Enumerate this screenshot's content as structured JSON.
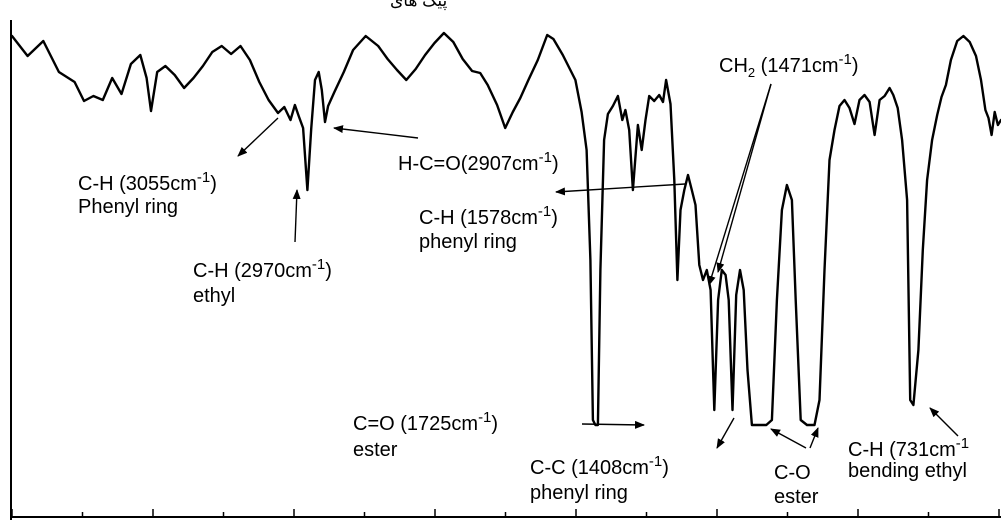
{
  "chart_data": {
    "type": "line",
    "title": "",
    "xlabel": "",
    "ylabel": "",
    "x_direction": "decreasing",
    "grid": false,
    "legend": "none",
    "line_color": "#000000",
    "top_text": "پیک های",
    "series": [
      {
        "points": [
          [
            3600,
            36
          ],
          [
            3575,
            56
          ],
          [
            3550,
            41
          ],
          [
            3525,
            72
          ],
          [
            3500,
            82
          ],
          [
            3485,
            101
          ],
          [
            3470,
            96
          ],
          [
            3455,
            100
          ],
          [
            3440,
            78
          ],
          [
            3425,
            94
          ],
          [
            3410,
            64
          ],
          [
            3395,
            55
          ],
          [
            3385,
            78
          ],
          [
            3378,
            111
          ],
          [
            3368,
            72
          ],
          [
            3355,
            66
          ],
          [
            3340,
            75
          ],
          [
            3325,
            88
          ],
          [
            3310,
            78
          ],
          [
            3295,
            66
          ],
          [
            3280,
            52
          ],
          [
            3265,
            46
          ],
          [
            3250,
            54
          ],
          [
            3235,
            46
          ],
          [
            3220,
            60
          ],
          [
            3205,
            82
          ],
          [
            3190,
            100
          ],
          [
            3175,
            113
          ],
          [
            3165,
            107
          ],
          [
            3155,
            120
          ],
          [
            3148,
            105
          ],
          [
            3142,
            116
          ],
          [
            3135,
            128
          ],
          [
            3128,
            190
          ],
          [
            3122,
            129
          ],
          [
            3116,
            80
          ],
          [
            3110,
            72
          ],
          [
            3105,
            90
          ],
          [
            3100,
            122
          ],
          [
            3095,
            106
          ],
          [
            3085,
            92
          ],
          [
            3070,
            72
          ],
          [
            3055,
            50
          ],
          [
            3035,
            36
          ],
          [
            3015,
            46
          ],
          [
            3000,
            59
          ],
          [
            2985,
            70
          ],
          [
            2970,
            80
          ],
          [
            2955,
            69
          ],
          [
            2940,
            55
          ],
          [
            2925,
            43
          ],
          [
            2910,
            33
          ],
          [
            2895,
            42
          ],
          [
            2880,
            59
          ],
          [
            2865,
            71
          ],
          [
            2852,
            73
          ],
          [
            2840,
            85
          ],
          [
            2825,
            105
          ],
          [
            2812,
            128
          ],
          [
            2800,
            112
          ],
          [
            2788,
            98
          ],
          [
            2775,
            80
          ],
          [
            2760,
            60
          ],
          [
            2745,
            35
          ],
          [
            2735,
            39
          ],
          [
            2720,
            55
          ],
          [
            2700,
            80
          ],
          [
            2690,
            112
          ],
          [
            2682,
            150
          ],
          [
            2676,
            260
          ],
          [
            2672,
            420
          ],
          [
            2668,
            425
          ],
          [
            2664,
            425
          ],
          [
            2660,
            270
          ],
          [
            2654,
            140
          ],
          [
            2648,
            114
          ],
          [
            2640,
            106
          ],
          [
            2632,
            96
          ],
          [
            2625,
            120
          ],
          [
            2620,
            110
          ],
          [
            2614,
            130
          ],
          [
            2608,
            190
          ],
          [
            2600,
            125
          ],
          [
            2594,
            150
          ],
          [
            2588,
            120
          ],
          [
            2582,
            96
          ],
          [
            2574,
            101
          ],
          [
            2566,
            95
          ],
          [
            2560,
            102
          ],
          [
            2555,
            80
          ],
          [
            2548,
            104
          ],
          [
            2542,
            180
          ],
          [
            2537,
            280
          ],
          [
            2532,
            210
          ],
          [
            2526,
            190
          ],
          [
            2520,
            175
          ],
          [
            2514,
            190
          ],
          [
            2508,
            205
          ],
          [
            2502,
            265
          ],
          [
            2496,
            280
          ],
          [
            2490,
            270
          ],
          [
            2484,
            290
          ],
          [
            2478,
            410
          ],
          [
            2472,
            300
          ],
          [
            2466,
            270
          ],
          [
            2460,
            275
          ],
          [
            2455,
            300
          ],
          [
            2449,
            410
          ],
          [
            2443,
            295
          ],
          [
            2437,
            270
          ],
          [
            2431,
            290
          ],
          [
            2425,
            370
          ],
          [
            2418,
            425
          ],
          [
            2405,
            425
          ],
          [
            2395,
            425
          ],
          [
            2386,
            420
          ],
          [
            2378,
            300
          ],
          [
            2370,
            210
          ],
          [
            2362,
            185
          ],
          [
            2354,
            200
          ],
          [
            2348,
            300
          ],
          [
            2340,
            420
          ],
          [
            2330,
            425
          ],
          [
            2318,
            425
          ],
          [
            2310,
            400
          ],
          [
            2302,
            270
          ],
          [
            2294,
            160
          ],
          [
            2286,
            130
          ],
          [
            2278,
            106
          ],
          [
            2270,
            100
          ],
          [
            2262,
            108
          ],
          [
            2254,
            124
          ],
          [
            2246,
            100
          ],
          [
            2238,
            95
          ],
          [
            2230,
            102
          ],
          [
            2222,
            135
          ],
          [
            2214,
            100
          ],
          [
            2206,
            96
          ],
          [
            2198,
            88
          ],
          [
            2192,
            95
          ],
          [
            2185,
            108
          ],
          [
            2178,
            140
          ],
          [
            2170,
            200
          ],
          [
            2165,
            400
          ],
          [
            2160,
            405
          ],
          [
            2152,
            350
          ],
          [
            2145,
            250
          ],
          [
            2138,
            180
          ],
          [
            2130,
            140
          ],
          [
            2122,
            115
          ],
          [
            2115,
            97
          ],
          [
            2108,
            85
          ],
          [
            2100,
            60
          ],
          [
            2090,
            41
          ],
          [
            2080,
            36
          ],
          [
            2070,
            42
          ],
          [
            2060,
            56
          ],
          [
            2052,
            80
          ],
          [
            2045,
            110
          ],
          [
            2040,
            118
          ],
          [
            2035,
            135
          ],
          [
            2030,
            112
          ],
          [
            2025,
            125
          ],
          [
            2020,
            120
          ]
        ]
      }
    ],
    "annotations": [
      {
        "id": "ch-3055",
        "line1": "C-H (3055cm",
        "sup1": "-1",
        "tail1": ")",
        "line2": "Phenyl ring"
      },
      {
        "id": "ch-2970",
        "line1": "C-H (2970cm",
        "sup1": "-1",
        "tail1": ")",
        "line2": "ethyl"
      },
      {
        "id": "hco-2907",
        "line1": "H-C=O(2907cm",
        "sup1": "-1",
        "tail1": ")"
      },
      {
        "id": "ch-1578",
        "line1": "C-H (1578cm",
        "sup1": "-1",
        "tail1": ")",
        "line2": "phenyl ring"
      },
      {
        "id": "ch2-1471",
        "line1a": "CH",
        "sub1": "2",
        "line1b": " (1471cm",
        "sup1": "-1",
        "tail1": ")"
      },
      {
        "id": "co-1725",
        "line1": "C=O (1725cm",
        "sup1": "-1",
        "tail1": ")",
        "line2": "ester"
      },
      {
        "id": "cc-1408",
        "line1": "C-C (1408cm",
        "sup1": "-1",
        "tail1": ")",
        "line2": "phenyl ring"
      },
      {
        "id": "c-o-ester",
        "line1": "C-O",
        "line2": "ester"
      },
      {
        "id": "ch-731",
        "line1": "C-H (731cm",
        "sup1": "-1",
        "line2": "bending ethyl"
      }
    ]
  }
}
